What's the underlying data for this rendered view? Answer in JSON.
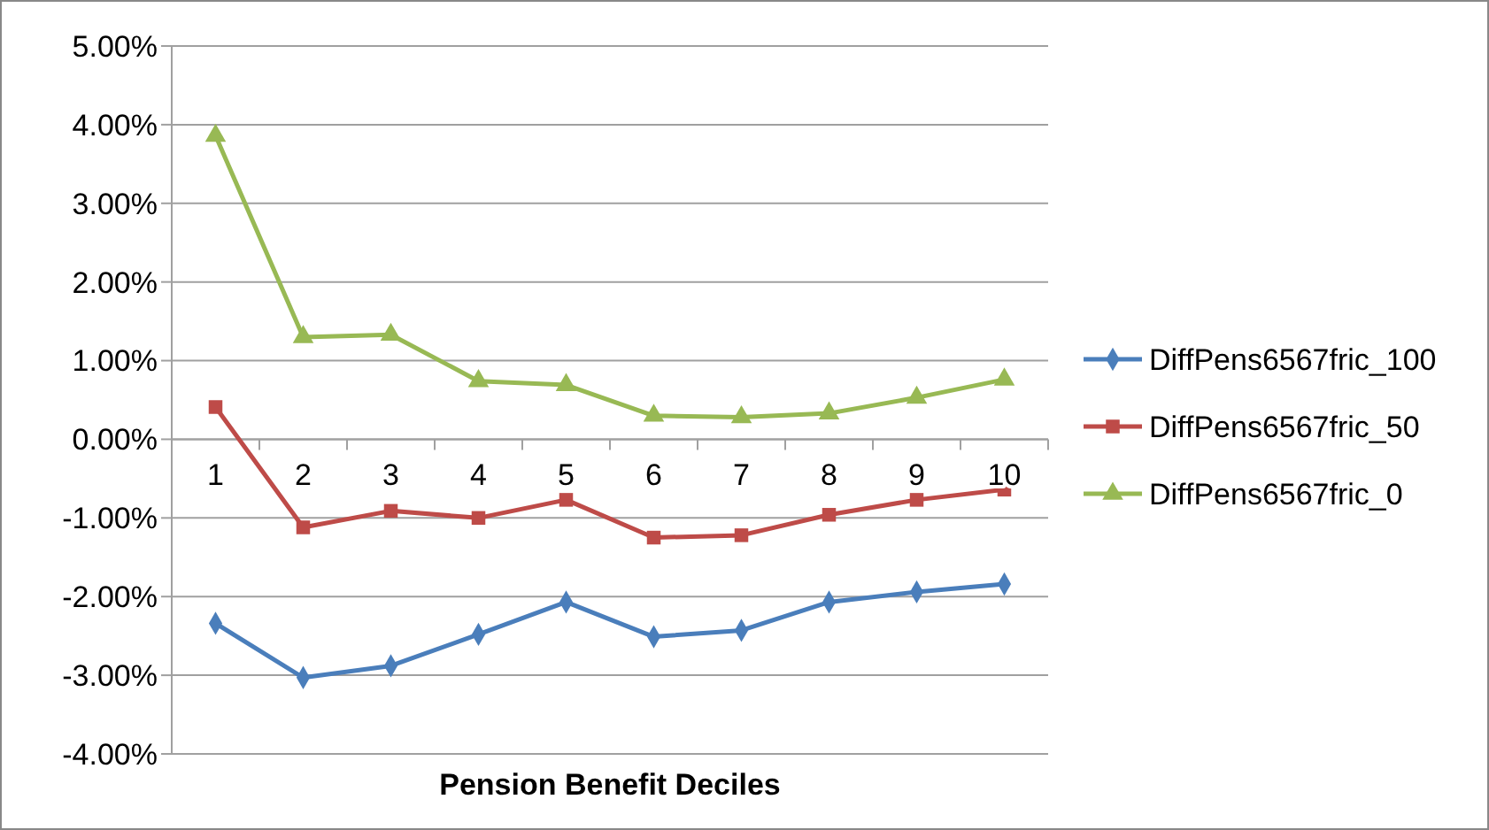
{
  "chart_data": {
    "type": "line",
    "xlabel": "Pension Benefit Deciles",
    "categories": [
      "1",
      "2",
      "3",
      "4",
      "5",
      "6",
      "7",
      "8",
      "9",
      "10"
    ],
    "series": [
      {
        "name": "DiffPens6567fric_100",
        "color": "#4a7ebb",
        "marker": "diamond",
        "values": [
          -2.34,
          -3.03,
          -2.88,
          -2.48,
          -2.07,
          -2.51,
          -2.43,
          -2.07,
          -1.94,
          -1.84
        ]
      },
      {
        "name": "DiffPens6567fric_50",
        "color": "#be4b48",
        "marker": "square",
        "values": [
          0.41,
          -1.12,
          -0.91,
          -1.0,
          -0.77,
          -1.25,
          -1.22,
          -0.96,
          -0.77,
          -0.64
        ]
      },
      {
        "name": "DiffPens6567fric_0",
        "color": "#98b954",
        "marker": "triangle",
        "values": [
          3.86,
          1.3,
          1.33,
          0.74,
          0.69,
          0.3,
          0.28,
          0.33,
          0.53,
          0.76
        ]
      }
    ],
    "ylim": [
      -4,
      5
    ],
    "yticks": [
      {
        "value": -4,
        "label": "-4.00%"
      },
      {
        "value": -3,
        "label": "-3.00%"
      },
      {
        "value": -2,
        "label": "-2.00%"
      },
      {
        "value": -1,
        "label": "-1.00%"
      },
      {
        "value": 0,
        "label": "0.00%"
      },
      {
        "value": 1,
        "label": "1.00%"
      },
      {
        "value": 2,
        "label": "2.00%"
      },
      {
        "value": 3,
        "label": "3.00%"
      },
      {
        "value": 4,
        "label": "4.00%"
      },
      {
        "value": 5,
        "label": "5.00%"
      }
    ],
    "grid": "y",
    "legend": "right",
    "line_style": "solid"
  }
}
